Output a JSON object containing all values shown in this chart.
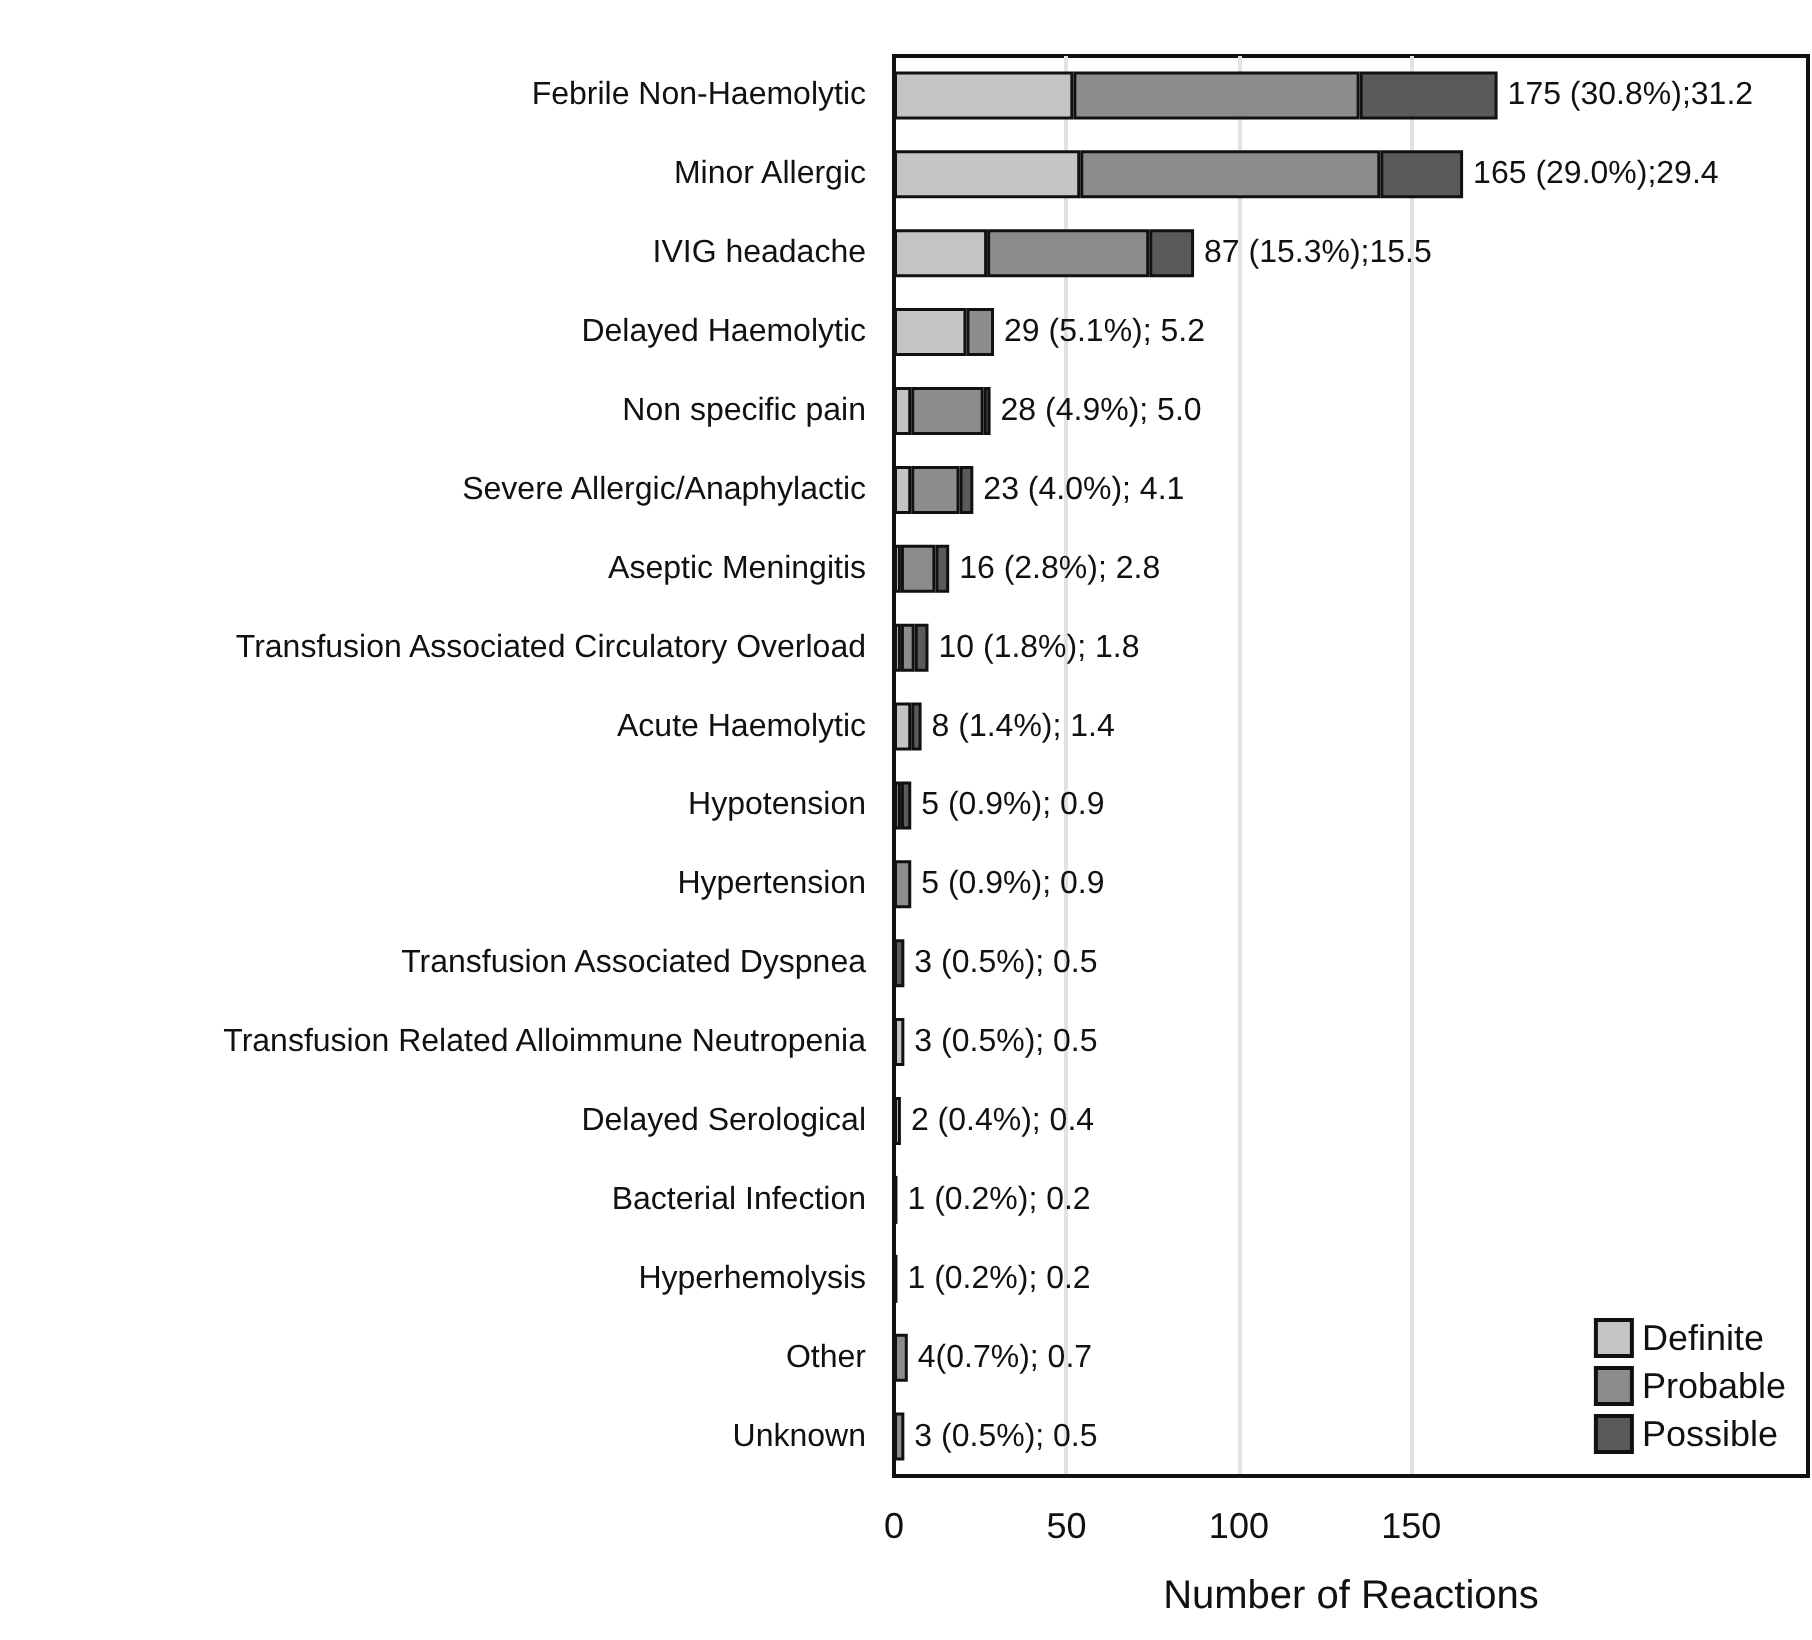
{
  "chart_data": {
    "type": "bar",
    "orientation": "horizontal",
    "stacked": true,
    "xlabel": "Number of Reactions",
    "categories": [
      "Febrile Non-Haemolytic",
      "Minor Allergic",
      "IVIG headache",
      "Delayed Haemolytic",
      "Non specific pain",
      "Severe Allergic/Anaphylactic",
      "Aseptic Meningitis",
      "Transfusion Associated Circulatory Overload",
      "Acute Haemolytic",
      "Hypotension",
      "Hypertension",
      "Transfusion Associated Dyspnea",
      "Transfusion Related Alloimmune Neutropenia",
      "Delayed Serological",
      "Bacterial Infection",
      "Hyperhemolysis",
      "Other",
      "Unknown"
    ],
    "series": [
      {
        "name": "Definite",
        "color": "#c4c4c4",
        "values": [
          52,
          54,
          27,
          21,
          5,
          5,
          2,
          2,
          5,
          0,
          0,
          0,
          3,
          2,
          0,
          0,
          0,
          0
        ]
      },
      {
        "name": "Probable",
        "color": "#8c8c8c",
        "values": [
          83,
          87,
          47,
          8,
          21,
          14,
          10,
          4,
          0,
          2,
          5,
          0,
          0,
          0,
          0,
          0,
          4,
          3
        ]
      },
      {
        "name": "Possible",
        "color": "#5a5a5a",
        "values": [
          40,
          24,
          13,
          0,
          2,
          4,
          4,
          4,
          3,
          3,
          0,
          3,
          0,
          0,
          1,
          1,
          0,
          0
        ]
      }
    ],
    "totals": [
      "175 (30.8%);31.2",
      "165 (29.0%);29.4",
      "87 (15.3%);15.5",
      "29 (5.1%); 5.2",
      "28 (4.9%); 5.0",
      "23 (4.0%); 4.1",
      "16 (2.8%); 2.8",
      "10 (1.8%); 1.8",
      "8 (1.4%); 1.4",
      "5 (0.9%); 0.9",
      "5 (0.9%); 0.9",
      "3 (0.5%); 0.5",
      "3 (0.5%); 0.5",
      "2 (0.4%); 0.4",
      "1 (0.2%); 0.2",
      "1 (0.2%); 0.2",
      "4(0.7%); 0.7",
      "3 (0.5%); 0.5"
    ],
    "xlim": [
      0,
      265
    ],
    "xticks": [
      0,
      50,
      100,
      150
    ],
    "grid": "x",
    "legend": "bottom right"
  }
}
